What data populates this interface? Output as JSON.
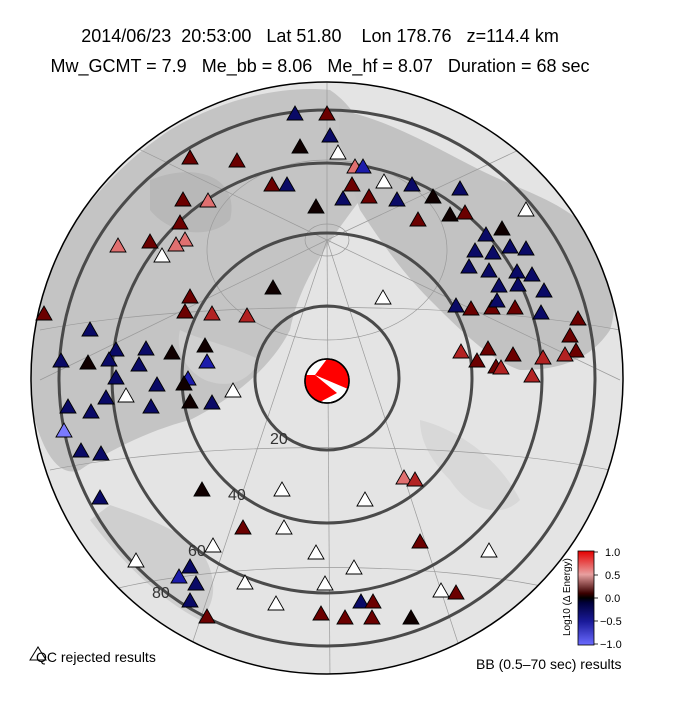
{
  "header": {
    "date": "2014/06/23",
    "time": "20:53:00",
    "lat": "Lat 51.80",
    "lon": "Lon 178.76",
    "depth": "z=114.4 km",
    "mw": "Mw_GCMT = 7.9",
    "me_bb": "Me_bb = 8.06",
    "me_hf": "Me_hf = 8.07",
    "duration": "Duration = 68 sec"
  },
  "distance_labels": [
    "20",
    "40",
    "60",
    "80"
  ],
  "legend": {
    "qc_label": "QC rejected results",
    "bb_label": "BB (0.5–70 sec) results"
  },
  "colorbar": {
    "title": "Log10 (Δ Energy)",
    "ticks": [
      "1.0",
      "0.5",
      "0.0",
      "−0.5",
      "−1.0"
    ],
    "colors": {
      "high": "#e60000",
      "mid": "#000000",
      "low": "#6b6bff"
    }
  }
}
